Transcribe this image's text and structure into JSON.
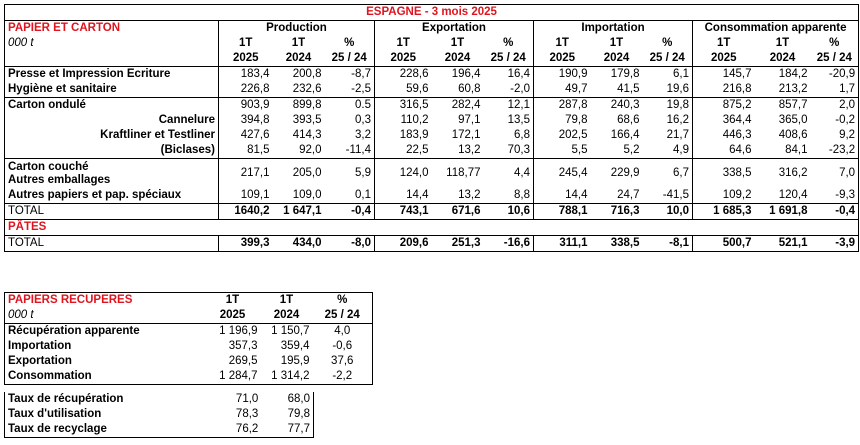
{
  "title": "ESPAGNE - 3 mois 2025",
  "main": {
    "section": "PAPIER ET CARTON",
    "unit": "000 t",
    "groups": [
      "Production",
      "Exportation",
      "Importation",
      "Consommation apparente"
    ],
    "h1": "1T",
    "y1": "2025",
    "y2": "2024",
    "pct": "%",
    "pct_sub": "25 / 24",
    "rows": [
      {
        "label": "Presse et Impression Ecriture",
        "v": [
          "183,4",
          "200,8",
          "-8,7",
          "228,6",
          "196,4",
          "16,4",
          "190,9",
          "179,8",
          "6,1",
          "145,7",
          "184,2",
          "-20,9"
        ]
      },
      {
        "label": "Hygiène et sanitaire",
        "v": [
          "226,8",
          "232,6",
          "-2,5",
          "59,6",
          "60,8",
          "-2,0",
          "49,7",
          "41,5",
          "19,6",
          "216,8",
          "213,2",
          "1,7"
        ]
      },
      {
        "label": "Carton ondulé",
        "v": [
          "903,9",
          "899,8",
          "0.5",
          "316,5",
          "282,4",
          "12,1",
          "287,8",
          "240,3",
          "19,8",
          "875,2",
          "857,7",
          "2,0"
        ]
      },
      {
        "label": "Cannelure",
        "v": [
          "394,8",
          "393,5",
          "0,3",
          "110,2",
          "97,1",
          "13,5",
          "79,8",
          "68,6",
          "16,2",
          "364,4",
          "365,0",
          "-0,2"
        ]
      },
      {
        "label": "Kraftliner et Testliner",
        "v": [
          "427,6",
          "414,3",
          "3,2",
          "183,9",
          "172,1",
          "6,8",
          "202,5",
          "166,4",
          "21,7",
          "446,3",
          "408,6",
          "9,2"
        ]
      },
      {
        "label": "(Biclases)",
        "v": [
          "81,5",
          "92,0",
          "-11,4",
          "22,5",
          "13,2",
          "70,3",
          "5,5",
          "5,2",
          "4,9",
          "64,6",
          "84,1",
          "-23,2"
        ]
      },
      {
        "label": "Carton couché",
        "label2": "Autres emballages",
        "v": [
          "217,1",
          "205,0",
          "5,9",
          "124,0",
          "118,77",
          "4,4",
          "245,4",
          "229,9",
          "6,7",
          "338,5",
          "316,2",
          "7,0"
        ]
      },
      {
        "label": "Autres papiers et pap. spéciaux",
        "v": [
          "109,1",
          "109,0",
          "0,1",
          "14,4",
          "13,2",
          "8,8",
          "14,4",
          "24,7",
          "-41,5",
          "109,2",
          "120,4",
          "-9,3"
        ]
      }
    ],
    "total": {
      "label": "TOTAL",
      "v": [
        "1640,2",
        "1 647,1",
        "-0,4",
        "743,1",
        "671,6",
        "10,6",
        "788,1",
        "716,3",
        "10,0",
        "1 685,3",
        "1 691,8",
        "-0,4"
      ]
    },
    "pates_section": "PÂTES",
    "pates_total": {
      "label": "TOTAL",
      "v": [
        "399,3",
        "434,0",
        "-8,0",
        "209,6",
        "251,3",
        "-16,6",
        "311,1",
        "338,5",
        "-8,1",
        "500,7",
        "521,1",
        "-3,9"
      ]
    }
  },
  "recovered": {
    "section": "PAPIERS RECUPERES",
    "unit": "000 t",
    "h1": "1T",
    "y1": "2025",
    "y2": "2024",
    "pct": "%",
    "pct_sub": "25 / 24",
    "rows": [
      {
        "label": "Récupération apparente",
        "v": [
          "1 196,9",
          "1 150,7",
          "4,0"
        ]
      },
      {
        "label": "Importation",
        "v": [
          "357,3",
          "359,4",
          "-0,6"
        ]
      },
      {
        "label": "Exportation",
        "v": [
          "269,5",
          "195,9",
          "37,6"
        ]
      },
      {
        "label": "Consommation",
        "v": [
          "1 284,7",
          "1 314,2",
          "-2,2"
        ]
      }
    ],
    "rates": [
      {
        "label": "Taux de récupération",
        "v": [
          "71,0",
          "68,0"
        ]
      },
      {
        "label": "Taux d'utilisation",
        "v": [
          "78,3",
          "79,8"
        ]
      },
      {
        "label": "Taux de recyclage",
        "v": [
          "76,2",
          "77,7"
        ]
      }
    ]
  }
}
